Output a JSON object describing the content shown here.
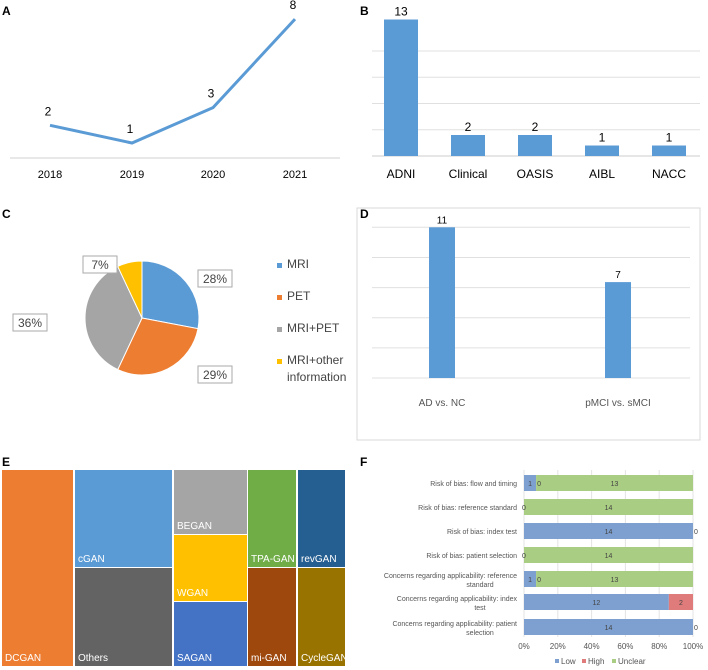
{
  "chart_data": [
    {
      "panel": "A",
      "type": "line",
      "x": [
        "2018",
        "2019",
        "2020",
        "2021"
      ],
      "values": [
        2,
        1,
        3,
        8
      ],
      "color": "#5b9bd5"
    },
    {
      "panel": "B",
      "type": "bar",
      "categories": [
        "ADNI",
        "Clinical",
        "OASIS",
        "AIBL",
        "NACC"
      ],
      "values": [
        13,
        2,
        2,
        1,
        1
      ],
      "ylim": [
        0,
        14
      ],
      "color": "#5b9bd5"
    },
    {
      "panel": "C",
      "type": "pie",
      "labels": [
        "MRI",
        "PET",
        "MRI+PET",
        "MRI+other information"
      ],
      "values": [
        28,
        29,
        36,
        7
      ],
      "value_labels": [
        "28%",
        "29%",
        "36%",
        "7%"
      ],
      "colors": [
        "#5b9bd5",
        "#ed7d31",
        "#a5a5a5",
        "#ffc000"
      ]
    },
    {
      "panel": "D",
      "type": "bar",
      "categories": [
        "AD vs. NC",
        "pMCI vs. sMCI"
      ],
      "values": [
        11,
        7
      ],
      "ylim": [
        0,
        12
      ],
      "color": "#5b9bd5"
    },
    {
      "panel": "E",
      "type": "treemap",
      "labels": [
        "DCGAN",
        "cGAN",
        "Others",
        "BEGAN",
        "WGAN",
        "SAGAN",
        "TPA-GAN",
        "mi-GAN",
        "revGAN",
        "CycleGAN"
      ],
      "colors": [
        "#ed7d31",
        "#5b9bd5",
        "#636363",
        "#a5a5a5",
        "#ffc000",
        "#4472c4",
        "#70ad47",
        "#9e480e",
        "#255e91",
        "#997300"
      ]
    },
    {
      "panel": "F",
      "type": "bar",
      "orientation": "horizontal-stacked-percent",
      "categories": [
        "Risk of bias: flow and timing",
        "Risk of bias: reference standard",
        "Risk of bias: index test",
        "Risk of bias: patient selection",
        "Concerns regarding applicability: reference standard",
        "Concerns regarding applicability: index test",
        "Concerns regarding applicability: patient selection"
      ],
      "series": [
        {
          "name": "Low",
          "color": "#7da0d0",
          "values": [
            1,
            0,
            14,
            0,
            1,
            12,
            14
          ]
        },
        {
          "name": "High",
          "color": "#e07b7b",
          "values": [
            0,
            0,
            0,
            0,
            0,
            2,
            0
          ]
        },
        {
          "name": "Unclear",
          "color": "#a9cd82",
          "values": [
            13,
            14,
            0,
            14,
            13,
            0,
            0
          ]
        }
      ],
      "xticks": [
        "0%",
        "20%",
        "40%",
        "60%",
        "80%",
        "100%"
      ]
    }
  ],
  "panel_labels": [
    "A",
    "B",
    "C",
    "D",
    "E",
    "F"
  ]
}
